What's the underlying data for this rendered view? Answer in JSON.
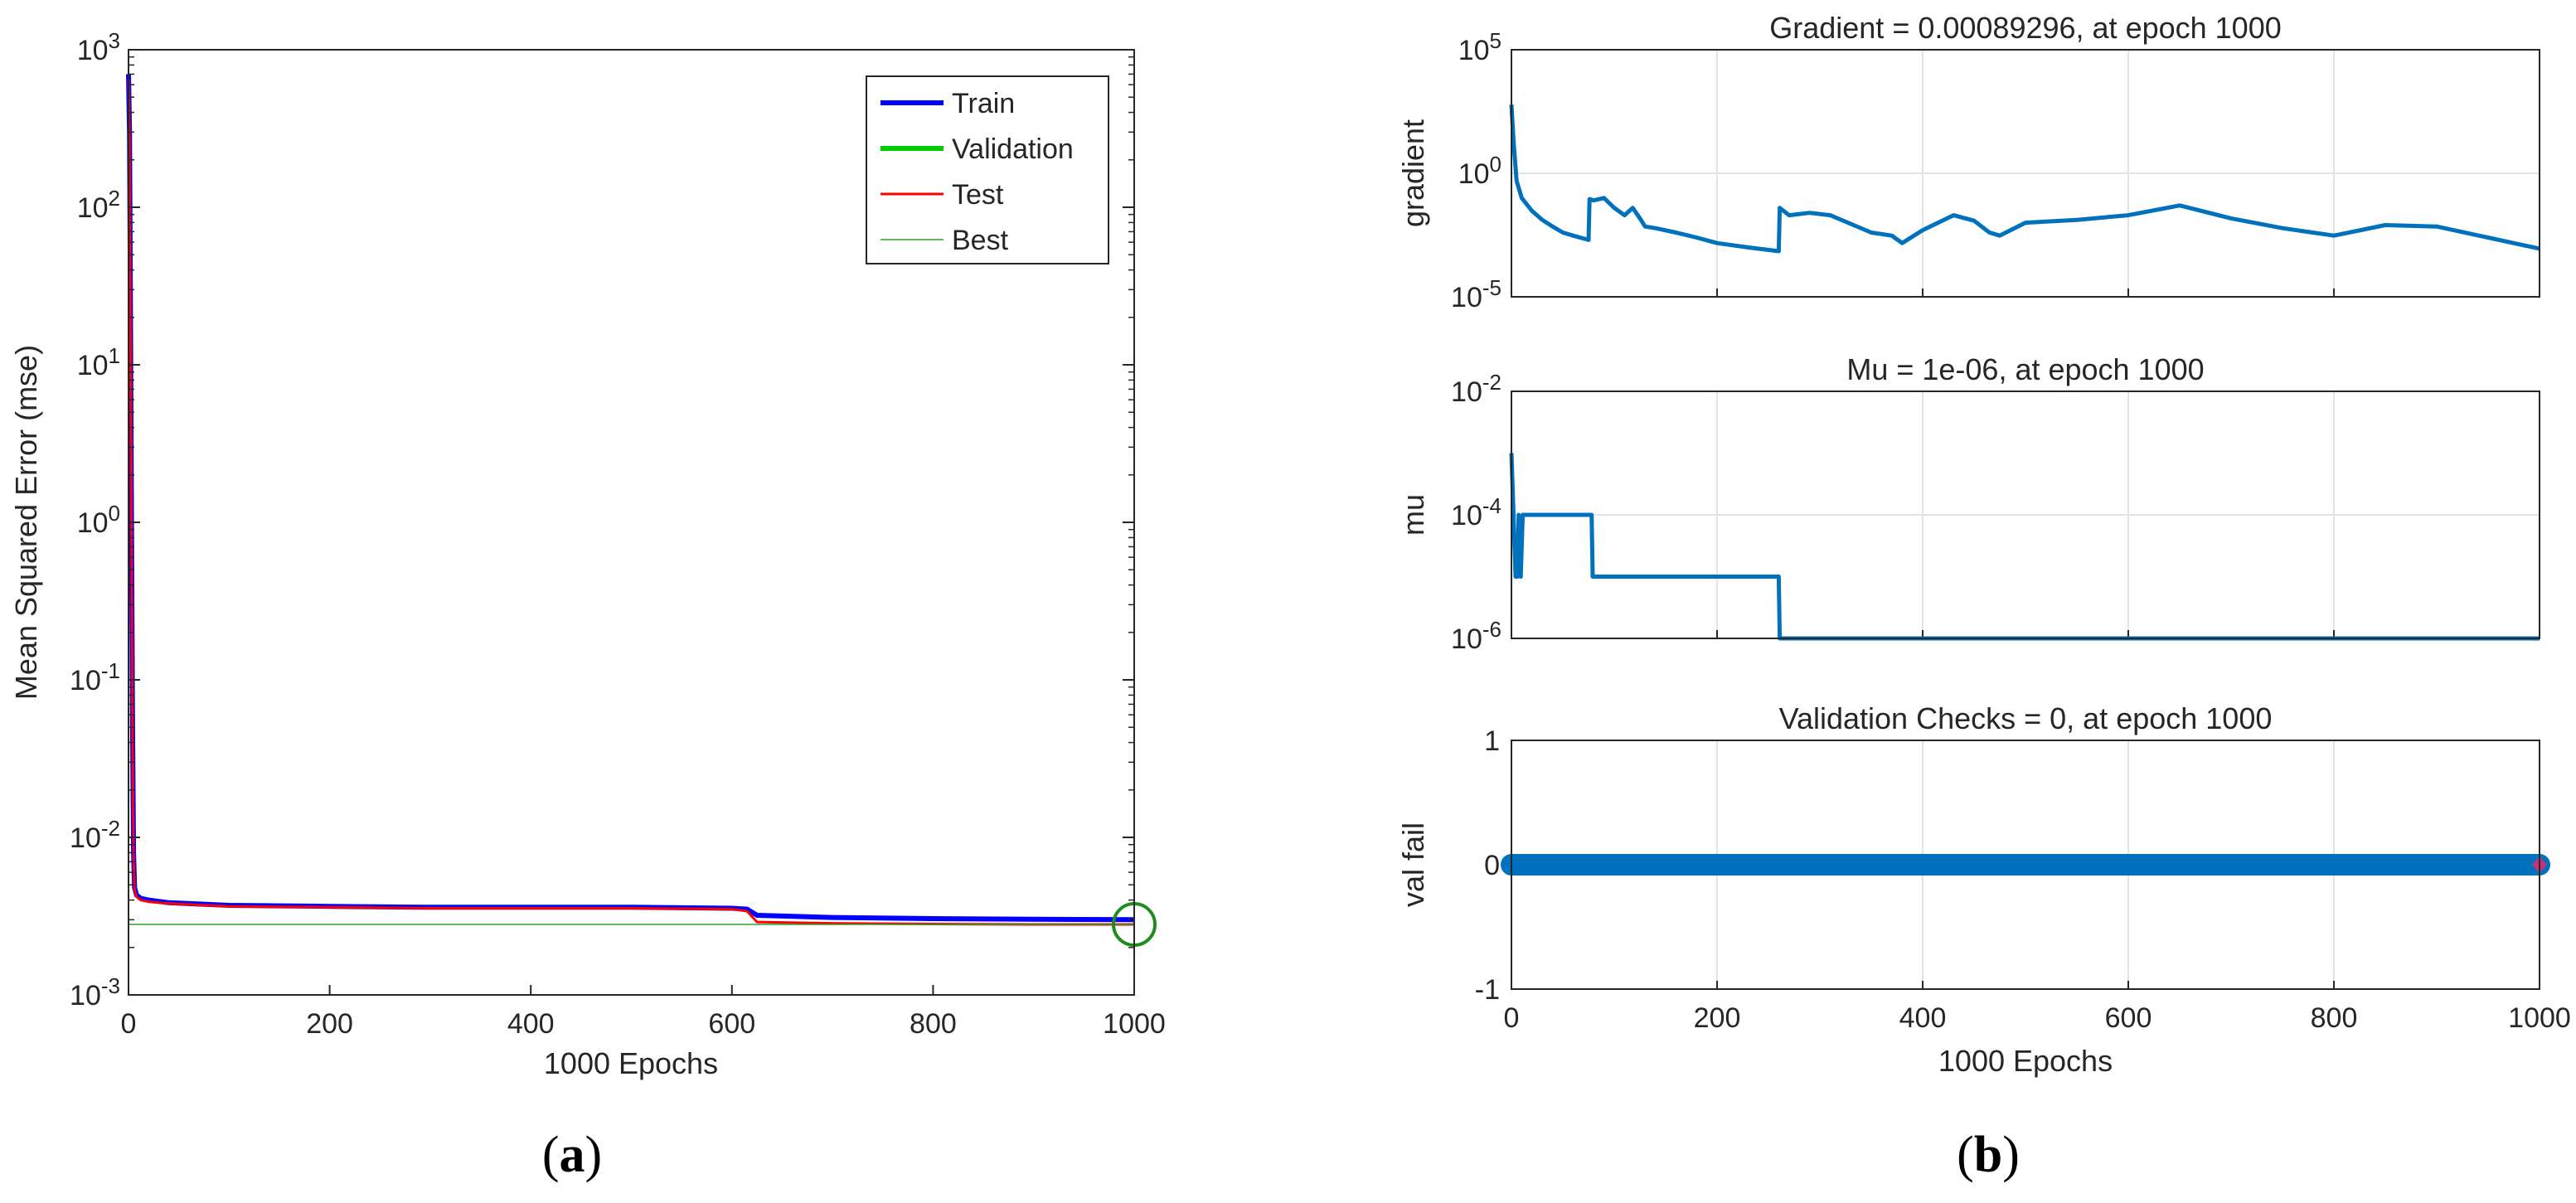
{
  "figure": {
    "caption_a": "a",
    "caption_b": "b"
  },
  "chart_data": [
    {
      "type": "line",
      "id": "a",
      "title": "",
      "xlabel": "1000 Epochs",
      "ylabel": "Mean Squared Error  (mse)",
      "xlim": [
        0,
        1000
      ],
      "ylim": [
        0.001,
        1000
      ],
      "yscale": "log",
      "xticks": [
        "0",
        "200",
        "400",
        "600",
        "800",
        "1000"
      ],
      "yticks": [
        {
          "base": "10",
          "exp": "3"
        },
        {
          "base": "10",
          "exp": "2"
        },
        {
          "base": "10",
          "exp": "1"
        },
        {
          "base": "10",
          "exp": "0"
        },
        {
          "base": "10",
          "exp": "-1"
        },
        {
          "base": "10",
          "exp": "-2"
        },
        {
          "base": "10",
          "exp": "-3"
        }
      ],
      "legend": {
        "placement": "top-right",
        "entries": [
          "Train",
          "Validation",
          "Test",
          "Best"
        ]
      },
      "series": [
        {
          "name": "Train",
          "color": "#0000ff",
          "x": [
            0,
            1,
            2,
            3,
            4,
            5,
            6,
            8,
            12,
            20,
            40,
            100,
            200,
            300,
            400,
            500,
            600,
            615,
            625,
            700,
            800,
            900,
            1000
          ],
          "values": [
            700,
            300,
            20,
            1.0,
            0.05,
            0.008,
            0.0048,
            0.0043,
            0.0041,
            0.004,
            0.00385,
            0.0037,
            0.00365,
            0.0036,
            0.0036,
            0.0036,
            0.00355,
            0.0035,
            0.0032,
            0.0031,
            0.00305,
            0.00302,
            0.003
          ]
        },
        {
          "name": "Validation",
          "color": "#00cc00",
          "x": [],
          "values": []
        },
        {
          "name": "Test",
          "color": "#ff0000",
          "x": [
            0,
            1,
            2,
            3,
            4,
            5,
            6,
            8,
            12,
            20,
            40,
            100,
            200,
            300,
            400,
            500,
            600,
            615,
            625,
            700,
            800,
            900,
            1000
          ],
          "values": [
            650,
            280,
            18,
            0.9,
            0.045,
            0.0075,
            0.0046,
            0.0042,
            0.004,
            0.0039,
            0.0038,
            0.00365,
            0.0036,
            0.00355,
            0.00355,
            0.00355,
            0.0035,
            0.0034,
            0.0029,
            0.00285,
            0.00282,
            0.0028,
            0.0028
          ]
        },
        {
          "name": "Best",
          "color": "#2ca02c",
          "x": [
            0,
            1000
          ],
          "values": [
            0.0028,
            0.0028
          ]
        }
      ],
      "best_marker": {
        "x": 1000,
        "y": 0.0028
      }
    },
    {
      "type": "line",
      "id": "b1",
      "title": "Gradient = 0.00089296, at epoch 1000",
      "xlabel": "",
      "ylabel": "gradient",
      "xlim": [
        0,
        1000
      ],
      "ylim": [
        1e-05,
        100000
      ],
      "yscale": "log",
      "yticks": [
        {
          "base": "10",
          "exp": "5"
        },
        {
          "base": "10",
          "exp": "0"
        },
        {
          "base": "10",
          "exp": "-5"
        }
      ],
      "series": [
        {
          "name": "gradient",
          "color": "#0072bd",
          "x": [
            0,
            2,
            5,
            10,
            20,
            30,
            40,
            50,
            60,
            75,
            76,
            80,
            90,
            100,
            110,
            118,
            125,
            130,
            140,
            160,
            180,
            200,
            230,
            260,
            261,
            270,
            290,
            310,
            330,
            350,
            370,
            380,
            400,
            430,
            450,
            465,
            475,
            500,
            550,
            600,
            650,
            700,
            750,
            800,
            850,
            900,
            1000
          ],
          "values": [
            600,
            20,
            0.5,
            0.1,
            0.03,
            0.013,
            0.007,
            0.004,
            0.003,
            0.002,
            0.09,
            0.08,
            0.1,
            0.04,
            0.02,
            0.04,
            0.015,
            0.007,
            0.006,
            0.004,
            0.0025,
            0.0015,
            0.001,
            0.0007,
            0.04,
            0.02,
            0.025,
            0.02,
            0.009,
            0.004,
            0.003,
            0.0015,
            0.005,
            0.02,
            0.012,
            0.004,
            0.003,
            0.01,
            0.013,
            0.02,
            0.05,
            0.015,
            0.006,
            0.003,
            0.008,
            0.007,
            0.00089296
          ]
        }
      ]
    },
    {
      "type": "line",
      "id": "b2",
      "title": "Mu = 1e-06, at epoch 1000",
      "xlabel": "",
      "ylabel": "mu",
      "xlim": [
        0,
        1000
      ],
      "ylim": [
        1e-06,
        0.01
      ],
      "yscale": "log",
      "yticks": [
        {
          "base": "10",
          "exp": "-2"
        },
        {
          "base": "10",
          "exp": "-4"
        },
        {
          "base": "10",
          "exp": "-6"
        }
      ],
      "series": [
        {
          "name": "mu",
          "color": "#0072bd",
          "x": [
            0,
            2,
            4,
            6,
            7,
            9,
            11,
            78,
            79,
            260,
            261,
            1000
          ],
          "values": [
            0.001,
            0.0001,
            1e-05,
            1e-05,
            0.0001,
            1e-05,
            0.0001,
            0.0001,
            1e-05,
            1e-05,
            1e-06,
            1e-06
          ]
        }
      ]
    },
    {
      "type": "scatter",
      "id": "b3",
      "title": "Validation Checks = 0, at epoch 1000",
      "xlabel": "1000 Epochs",
      "ylabel": "val fail",
      "xlim": [
        0,
        1000
      ],
      "ylim": [
        -1,
        1
      ],
      "yscale": "linear",
      "xticks": [
        "0",
        "200",
        "400",
        "600",
        "800",
        "1000"
      ],
      "yticks": [
        "1",
        "0",
        "-1"
      ],
      "series": [
        {
          "name": "val fail",
          "color": "#0072bd",
          "x_range": [
            0,
            1000
          ],
          "value": 0
        }
      ],
      "end_marker": {
        "x": 1000,
        "y": 0,
        "color": "#c7317a"
      }
    }
  ]
}
